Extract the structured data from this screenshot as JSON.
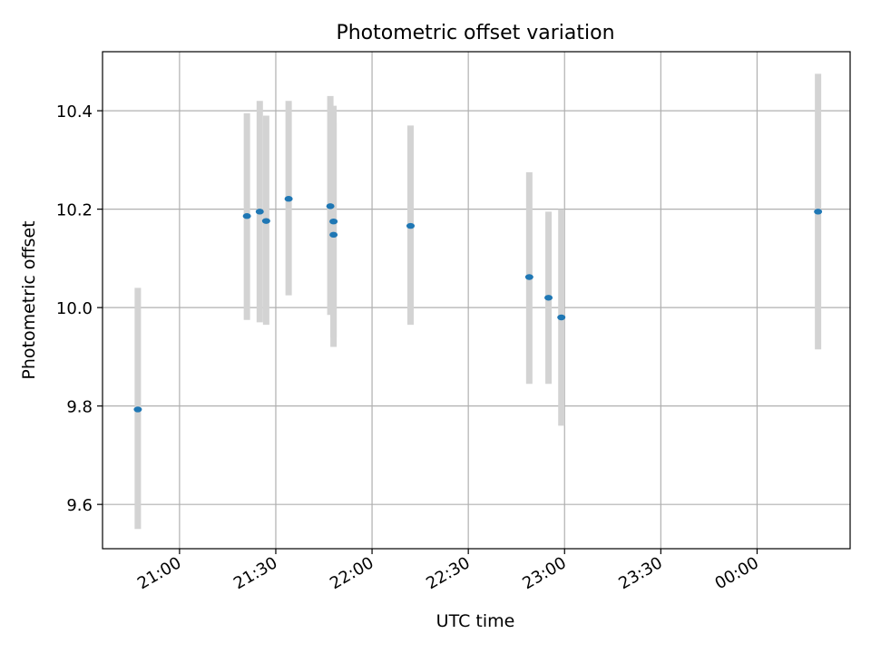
{
  "chart_data": {
    "type": "scatter",
    "title": "Photometric offset variation",
    "xlabel": "UTC time",
    "ylabel": "Photometric offset",
    "x_ticks": [
      "21:00",
      "21:30",
      "22:00",
      "22:30",
      "23:00",
      "23:30",
      "00:00"
    ],
    "y_ticks": [
      "9.6",
      "9.8",
      "10.0",
      "10.2",
      "10.4"
    ],
    "xlim": [
      "20:36",
      "00:29"
    ],
    "ylim": [
      9.51,
      10.52
    ],
    "grid": true,
    "colors": {
      "points": "#1f77b4",
      "errorbars": "#d3d3d3",
      "grid": "#b0b0b0"
    },
    "series": [
      {
        "points": [
          {
            "x": "20:47",
            "y": 9.793,
            "err_lo": 9.55,
            "err_hi": 10.04
          },
          {
            "x": "21:21",
            "y": 10.186,
            "err_lo": 9.975,
            "err_hi": 10.395
          },
          {
            "x": "21:25",
            "y": 10.195,
            "err_lo": 9.97,
            "err_hi": 10.42
          },
          {
            "x": "21:27",
            "y": 10.176,
            "err_lo": 9.965,
            "err_hi": 10.39
          },
          {
            "x": "21:34",
            "y": 10.221,
            "err_lo": 10.025,
            "err_hi": 10.42
          },
          {
            "x": "21:47",
            "y": 10.206,
            "err_lo": 9.985,
            "err_hi": 10.43
          },
          {
            "x": "21:48",
            "y": 10.148,
            "err_lo": 9.92,
            "err_hi": 10.375
          },
          {
            "x": "21:48",
            "y": 10.175,
            "err_lo": 9.94,
            "err_hi": 10.41
          },
          {
            "x": "22:12",
            "y": 10.166,
            "err_lo": 9.965,
            "err_hi": 10.37
          },
          {
            "x": "22:49",
            "y": 10.062,
            "err_lo": 9.845,
            "err_hi": 10.275
          },
          {
            "x": "22:55",
            "y": 10.02,
            "err_lo": 9.845,
            "err_hi": 10.195
          },
          {
            "x": "22:59",
            "y": 9.98,
            "err_lo": 9.76,
            "err_hi": 10.2
          },
          {
            "x": "00:19",
            "y": 10.195,
            "err_lo": 9.915,
            "err_hi": 10.475
          }
        ]
      }
    ]
  }
}
